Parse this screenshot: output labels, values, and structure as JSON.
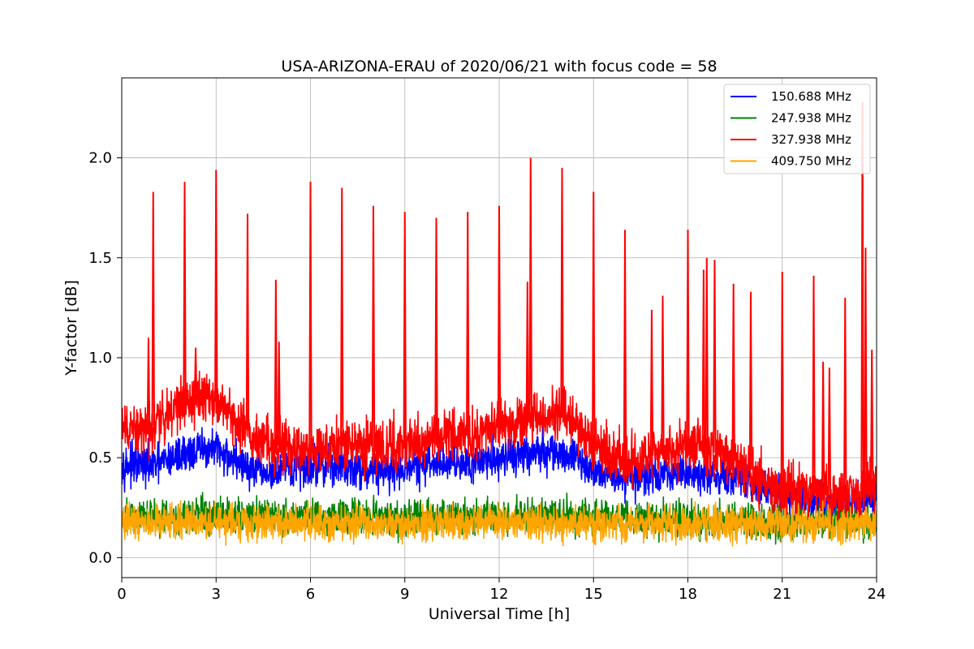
{
  "chart_data": {
    "type": "line",
    "title": "USA-ARIZONA-ERAU of 2020/06/21 with focus code = 58",
    "xlabel": "Universal Time [h]",
    "ylabel": "Y-factor [dB]",
    "xlim": [
      0,
      24
    ],
    "ylim": [
      -0.1,
      2.4
    ],
    "xticks": [
      0,
      3,
      6,
      9,
      12,
      15,
      18,
      21,
      24
    ],
    "xtick_labels": [
      "0",
      "3",
      "6",
      "9",
      "12",
      "15",
      "18",
      "21",
      "24"
    ],
    "yticks": [
      0.0,
      0.5,
      1.0,
      1.5,
      2.0
    ],
    "ytick_labels": [
      "0.0",
      "0.5",
      "1.0",
      "1.5",
      "2.0"
    ],
    "grid": true,
    "legend_position": "top-right",
    "series": [
      {
        "name": "150.688 MHz",
        "color": "#0000ff",
        "x": [
          0,
          0.5,
          1,
          1.5,
          2,
          2.5,
          3,
          3.5,
          4,
          4.5,
          5,
          5.5,
          6,
          6.5,
          7,
          7.5,
          8,
          8.5,
          9,
          9.5,
          10,
          10.5,
          11,
          11.5,
          12,
          12.5,
          13,
          13.5,
          14,
          14.5,
          15,
          15.5,
          16,
          16.5,
          17,
          17.5,
          18,
          18.5,
          19,
          19.5,
          20,
          20.5,
          21,
          21.5,
          22,
          22.5,
          23,
          23.5,
          24
        ],
        "mean": [
          0.47,
          0.46,
          0.46,
          0.49,
          0.52,
          0.54,
          0.54,
          0.5,
          0.45,
          0.42,
          0.42,
          0.44,
          0.46,
          0.46,
          0.46,
          0.45,
          0.44,
          0.44,
          0.45,
          0.46,
          0.47,
          0.48,
          0.48,
          0.49,
          0.5,
          0.51,
          0.52,
          0.53,
          0.52,
          0.49,
          0.44,
          0.42,
          0.4,
          0.4,
          0.41,
          0.42,
          0.42,
          0.42,
          0.41,
          0.4,
          0.37,
          0.34,
          0.31,
          0.29,
          0.28,
          0.27,
          0.27,
          0.28,
          0.3
        ],
        "spread": 0.09,
        "spikes": []
      },
      {
        "name": "247.938 MHz",
        "color": "#008000",
        "x": [
          0,
          3,
          6,
          9,
          12,
          15,
          18,
          21,
          24
        ],
        "mean": [
          0.2,
          0.21,
          0.2,
          0.2,
          0.21,
          0.2,
          0.19,
          0.18,
          0.18
        ],
        "spread": 0.08,
        "spikes": []
      },
      {
        "name": "327.938 MHz",
        "color": "#ff0000",
        "x": [
          0,
          0.5,
          1,
          1.5,
          2,
          2.5,
          3,
          3.5,
          4,
          4.5,
          5,
          5.5,
          6,
          6.5,
          7,
          7.5,
          8,
          8.5,
          9,
          9.5,
          10,
          10.5,
          11,
          11.5,
          12,
          12.5,
          13,
          13.5,
          14,
          14.5,
          15,
          15.5,
          16,
          16.5,
          17,
          17.5,
          18,
          18.5,
          19,
          19.5,
          20,
          20.5,
          21,
          21.5,
          22,
          22.5,
          23,
          23.5,
          24
        ],
        "mean": [
          0.64,
          0.62,
          0.66,
          0.74,
          0.78,
          0.8,
          0.78,
          0.72,
          0.64,
          0.6,
          0.56,
          0.54,
          0.56,
          0.56,
          0.57,
          0.56,
          0.56,
          0.55,
          0.57,
          0.59,
          0.6,
          0.61,
          0.62,
          0.64,
          0.65,
          0.66,
          0.68,
          0.7,
          0.72,
          0.65,
          0.56,
          0.52,
          0.48,
          0.49,
          0.52,
          0.54,
          0.56,
          0.54,
          0.52,
          0.48,
          0.44,
          0.38,
          0.34,
          0.32,
          0.32,
          0.31,
          0.3,
          0.32,
          0.4
        ],
        "spread": 0.12,
        "spikes": [
          [
            0.85,
            1.1
          ],
          [
            1.0,
            1.83
          ],
          [
            2.0,
            1.88
          ],
          [
            2.35,
            1.05
          ],
          [
            3.0,
            1.94
          ],
          [
            4.0,
            1.72
          ],
          [
            4.9,
            1.39
          ],
          [
            5.0,
            1.08
          ],
          [
            6.0,
            1.88
          ],
          [
            7.0,
            1.85
          ],
          [
            8.0,
            1.76
          ],
          [
            9.0,
            1.73
          ],
          [
            10.0,
            1.7
          ],
          [
            11.0,
            1.73
          ],
          [
            12.0,
            1.76
          ],
          [
            12.9,
            1.38
          ],
          [
            13.0,
            2.0
          ],
          [
            14.0,
            1.95
          ],
          [
            15.0,
            1.83
          ],
          [
            16.0,
            1.64
          ],
          [
            16.85,
            1.24
          ],
          [
            17.2,
            1.31
          ],
          [
            18.0,
            1.64
          ],
          [
            18.5,
            1.44
          ],
          [
            18.6,
            1.5
          ],
          [
            18.85,
            1.49
          ],
          [
            19.45,
            1.37
          ],
          [
            20.0,
            1.33
          ],
          [
            21.0,
            1.43
          ],
          [
            22.0,
            1.41
          ],
          [
            22.3,
            0.98
          ],
          [
            22.5,
            0.95
          ],
          [
            23.0,
            1.3
          ],
          [
            23.55,
            2.28
          ],
          [
            23.65,
            1.55
          ],
          [
            23.85,
            1.04
          ]
        ]
      },
      {
        "name": "409.750 MHz",
        "color": "#ffa500",
        "x": [
          0,
          3,
          6,
          9,
          12,
          15,
          18,
          21,
          24
        ],
        "mean": [
          0.17,
          0.18,
          0.17,
          0.17,
          0.18,
          0.17,
          0.17,
          0.17,
          0.17
        ],
        "spread": 0.08,
        "spikes": []
      }
    ]
  }
}
